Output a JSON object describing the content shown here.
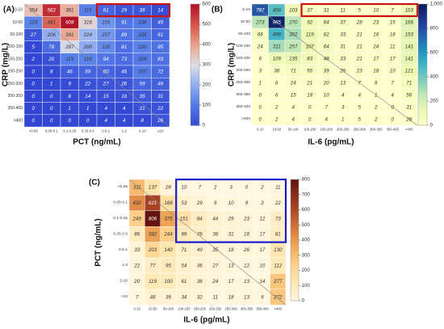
{
  "chart_data": [
    {
      "panel": "(A)",
      "type": "heatmap",
      "xlabel": "PCT (ng/mL)",
      "ylabel": "CRP (mg/L)",
      "x_categories": [
        "<0.05",
        "0.05-0.1",
        "0.1-0.25",
        "0.25-0.5",
        "0.5-1",
        "1-2",
        "2-10",
        "≥10"
      ],
      "y_categories": [
        "0-10",
        "10-50",
        "50-100",
        "100-150",
        "150-200",
        "200-250",
        "250-300",
        "300-350",
        "350-400",
        ">400"
      ],
      "values": [
        [
          354,
          562,
          381,
          115,
          61,
          29,
          36,
          14
        ],
        [
          123,
          481,
          608,
          318,
          155,
          91,
          108,
          49
        ],
        [
          27,
          206,
          391,
          224,
          157,
          89,
          106,
          61
        ],
        [
          5,
          78,
          287,
          200,
          135,
          81,
          120,
          85
        ],
        [
          2,
          20,
          115,
          119,
          94,
          73,
          104,
          83
        ],
        [
          0,
          8,
          46,
          59,
          60,
          46,
          107,
          72
        ],
        [
          0,
          1,
          9,
          22,
          27,
          26,
          59,
          49
        ],
        [
          0,
          0,
          8,
          14,
          15,
          16,
          35,
          31
        ],
        [
          0,
          0,
          1,
          1,
          4,
          4,
          21,
          22
        ],
        [
          0,
          0,
          0,
          0,
          4,
          4,
          8,
          26
        ]
      ],
      "colorbar": {
        "min": 0,
        "max": 600,
        "ticks": [
          0,
          100,
          200,
          300,
          400,
          500,
          600
        ]
      },
      "colormap": "coolwarm",
      "highlight": {
        "rows": [
          0,
          0
        ],
        "cols": [
          4,
          7
        ],
        "color": "#cc1111"
      }
    },
    {
      "panel": "(B)",
      "type": "heatmap",
      "xlabel": "IL-6 (pg/mL)",
      "ylabel": "CRP (mg/L)",
      "x_categories": [
        "0-10",
        "10-50",
        "50-100",
        "100-150",
        "150-200",
        "200-250",
        "250-300",
        "300-350",
        "350-400",
        ">400"
      ],
      "y_categories": [
        "0-10",
        "10-50",
        "50-100",
        "100-150",
        "150-200",
        "200-250",
        "250-300",
        "300-350",
        "350-400",
        ">400"
      ],
      "values": [
        [
          787,
          458,
          103,
          37,
          31,
          11,
          5,
          10,
          7,
          103
        ],
        [
          273,
          965,
          270,
          92,
          64,
          37,
          28,
          23,
          15,
          166
        ],
        [
          66,
          498,
          302,
          119,
          62,
          33,
          21,
          16,
          18,
          153
        ],
        [
          24,
          311,
          257,
          107,
          64,
          31,
          21,
          24,
          11,
          141
        ],
        [
          6,
          109,
          135,
          83,
          48,
          33,
          21,
          17,
          17,
          141
        ],
        [
          3,
          38,
          71,
          55,
          39,
          25,
          23,
          18,
          10,
          121
        ],
        [
          1,
          6,
          24,
          21,
          20,
          13,
          7,
          6,
          7,
          71
        ],
        [
          0,
          6,
          15,
          18,
          10,
          4,
          4,
          1,
          4,
          56
        ],
        [
          0,
          2,
          4,
          0,
          7,
          3,
          5,
          2,
          0,
          31
        ],
        [
          0,
          2,
          4,
          0,
          4,
          1,
          5,
          2,
          0,
          28
        ]
      ],
      "colorbar": {
        "min": 0,
        "max": 1000,
        "ticks": [
          0,
          200,
          400,
          600,
          800,
          "1,000"
        ]
      },
      "colormap": "YlGnBu",
      "highlight": {
        "rows": [
          0,
          0
        ],
        "cols": [
          3,
          9
        ],
        "color": "#cc1111"
      }
    },
    {
      "panel": "(C)",
      "type": "heatmap",
      "xlabel": "IL-6 (pg/mL)",
      "ylabel": "PCT (ng/mL)",
      "x_categories": [
        "0-10",
        "10-50",
        "50-100",
        "100-150",
        "150-200",
        "200-250",
        "250-300",
        "300-350",
        "350-400",
        ">400"
      ],
      "y_categories": [
        "<0.05",
        "0.05-0.1",
        "0.1-0.25",
        "0.25-0.5",
        "0.5-1",
        "1-2",
        "2-10",
        ">10"
      ],
      "values": [
        [
          311,
          137,
          28,
          10,
          7,
          2,
          3,
          0,
          2,
          11
        ],
        [
          432,
          621,
          168,
          53,
          29,
          9,
          10,
          9,
          3,
          22
        ],
        [
          249,
          806,
          375,
          151,
          84,
          44,
          29,
          23,
          12,
          73
        ],
        [
          86,
          382,
          244,
          99,
          76,
          38,
          31,
          18,
          17,
          81
        ],
        [
          33,
          203,
          140,
          71,
          49,
          35,
          18,
          26,
          17,
          130
        ],
        [
          22,
          77,
          95,
          54,
          36,
          27,
          13,
          12,
          10,
          112
        ],
        [
          20,
          119,
          100,
          61,
          36,
          24,
          17,
          13,
          14,
          277
        ],
        [
          7,
          48,
          36,
          34,
          32,
          11,
          18,
          13,
          9,
          272
        ]
      ],
      "colorbar": {
        "min": 0,
        "max": 800,
        "ticks": [
          0,
          100,
          200,
          300,
          400,
          500,
          600,
          700,
          800
        ]
      },
      "colormap": "YlOrBr",
      "highlight": {
        "rows": [
          0,
          3
        ],
        "cols": [
          3,
          9
        ],
        "color": "#1a1acc"
      }
    }
  ]
}
